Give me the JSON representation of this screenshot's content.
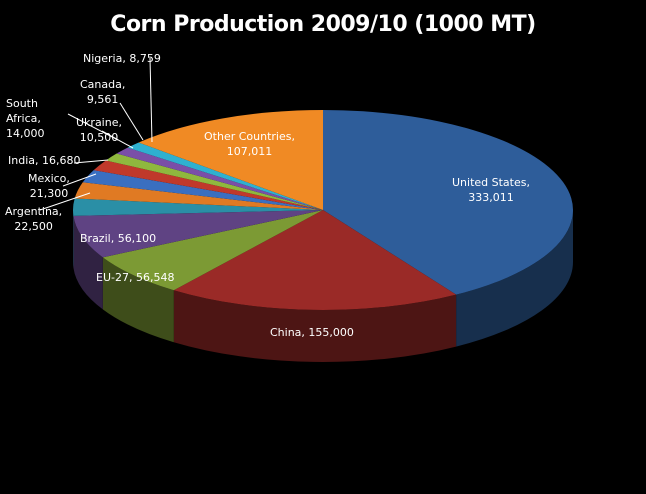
{
  "chart_data": {
    "type": "pie",
    "title": "Corn Production 2009/10 (1000 MT)",
    "style": "3d-exploded-none",
    "categories": [
      "United States",
      "China",
      "EU-27",
      "Brazil",
      "Argentina",
      "Mexico",
      "India",
      "South Africa",
      "Ukraine",
      "Canada",
      "Nigeria",
      "Other Countries"
    ],
    "values": [
      333011,
      155000,
      56548,
      56100,
      22500,
      21300,
      16680,
      14000,
      10500,
      9561,
      8759,
      107011
    ],
    "colors": [
      "#2e5d9a",
      "#9a2a27",
      "#7c9a34",
      "#5f4383",
      "#2a8fa6",
      "#e07a23",
      "#3a6fc0",
      "#c0392b",
      "#8fb83e",
      "#7a4fa8",
      "#2fb0d0",
      "#f08a24"
    ],
    "labels": [
      {
        "text": "United States, 333,011"
      },
      {
        "text": "China, 155,000"
      },
      {
        "text": "EU-27, 56,548"
      },
      {
        "text": "Brazil, 56,100"
      },
      {
        "text": "Argentina, 22,500"
      },
      {
        "text": "Mexico, 21,300"
      },
      {
        "text": "India, 16,680"
      },
      {
        "text": "South Africa, 14,000"
      },
      {
        "text": "Ukraine, 10,500"
      },
      {
        "text": "Canada, 9,561"
      },
      {
        "text": "Nigeria, 8,759"
      },
      {
        "text": "Other Countries, 107,011"
      }
    ],
    "legend": "none",
    "xlabel": "",
    "ylabel": ""
  },
  "title": "Corn Production 2009/10 (1000 MT)",
  "labels": {
    "us": [
      "United States,",
      "333,011"
    ],
    "china": "China, 155,000",
    "eu": "EU-27, 56,548",
    "brazil": "Brazil, 56,100",
    "argentina": [
      "Argentina,",
      "22,500"
    ],
    "mexico": [
      "Mexico,",
      "21,300"
    ],
    "india": "India, 16,680",
    "safrica": [
      "South",
      "Africa,",
      "14,000"
    ],
    "ukraine": [
      "Ukraine,",
      "10,500"
    ],
    "canada": [
      "Canada,",
      "9,561"
    ],
    "nigeria": "Nigeria, 8,759",
    "other": [
      "Other Countries,",
      "107,011"
    ]
  }
}
